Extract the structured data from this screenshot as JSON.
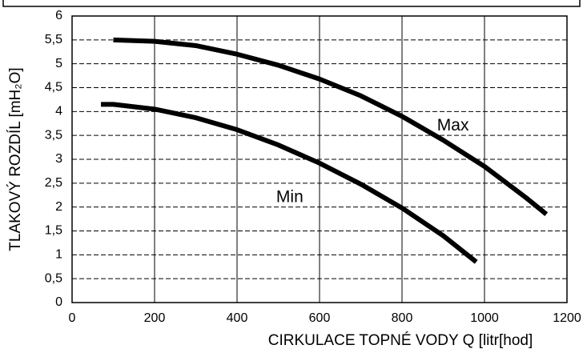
{
  "chart_data": {
    "type": "line",
    "xlabel": "CIRKULACE TOPNÉ VODY Q [litr[hod]",
    "ylabel": "TLAKOVÝ ROZDÍL [mH₂O]",
    "xlim": [
      0,
      1200
    ],
    "xticks": [
      0,
      200,
      400,
      600,
      800,
      1000,
      1200
    ],
    "ylim": [
      0,
      6
    ],
    "yticks": [
      0,
      {
        "value": 0.5,
        "label": "0,5"
      },
      1,
      {
        "value": 1.5,
        "label": "1,5"
      },
      2,
      {
        "value": 2.5,
        "label": "2,5"
      },
      3,
      {
        "value": 3.5,
        "label": "3,5"
      },
      4,
      {
        "value": 4.5,
        "label": "4,5"
      },
      5,
      {
        "value": 5.5,
        "label": "5,5"
      },
      6
    ],
    "grid": true,
    "series": [
      {
        "name": "Max",
        "color": "#000000",
        "x": [
          100,
          200,
          300,
          400,
          500,
          600,
          700,
          800,
          900,
          1000,
          1100,
          1150
        ],
        "values": [
          5.5,
          5.47,
          5.38,
          5.2,
          4.97,
          4.68,
          4.33,
          3.9,
          3.4,
          2.85,
          2.2,
          1.85
        ]
      },
      {
        "name": "Min",
        "color": "#000000",
        "x": [
          70,
          100,
          200,
          300,
          400,
          500,
          600,
          700,
          800,
          900,
          980
        ],
        "values": [
          4.15,
          4.15,
          4.05,
          3.87,
          3.62,
          3.3,
          2.92,
          2.48,
          1.98,
          1.4,
          0.85
        ]
      }
    ]
  }
}
